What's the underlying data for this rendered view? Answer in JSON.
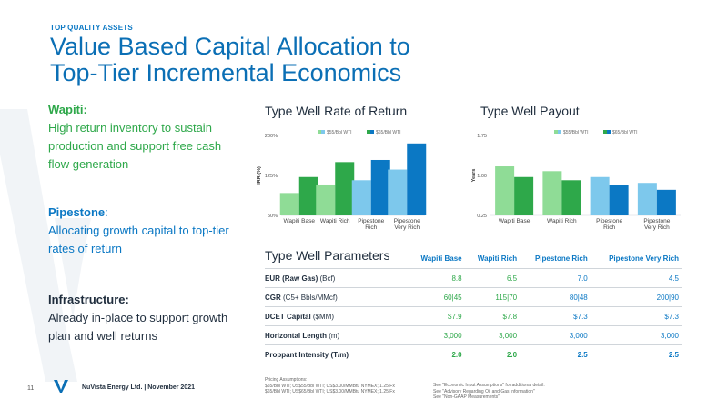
{
  "header": {
    "eyebrow": "TOP QUALITY ASSETS",
    "title_line1": "Value Based Capital Allocation to",
    "title_line2": "Top-Tier Incremental Economics"
  },
  "left": {
    "wapiti_label": "Wapiti:",
    "wapiti_text": "High return inventory to sustain production and support free cash flow generation",
    "pipestone_label": "Pipestone",
    "pipestone_colon": ":",
    "pipestone_text": "Allocating growth capital to top-tier rates of return",
    "infra_label": "Infrastructure:",
    "infra_text": "Already in-place to support growth plan and well returns"
  },
  "colors": {
    "light_green": "#8fdc96",
    "green": "#2ea84a",
    "light_blue": "#7dc8ec",
    "blue": "#0b78c4"
  },
  "chart_data": [
    {
      "type": "bar",
      "title": "Type Well Rate of Return",
      "ylabel": "IRR (%)",
      "ylim": [
        50,
        200
      ],
      "yticks": [
        "200%",
        "125%",
        "50%"
      ],
      "categories": [
        "Wapiti Base",
        "Wapiti Rich",
        "Pipestone Rich",
        "Pipestone Very Rich"
      ],
      "category_lines": [
        [
          "Wapiti Base"
        ],
        [
          "Wapiti Rich"
        ],
        [
          "Pipestone",
          "Rich"
        ],
        [
          "Pipestone",
          "Very Rich"
        ]
      ],
      "legend_placement": "top",
      "series": [
        {
          "name": "$55/Bbl WTI",
          "values": [
            92,
            108,
            116,
            136
          ],
          "colors": [
            "#8fdc96",
            "#8fdc96",
            "#7dc8ec",
            "#7dc8ec"
          ]
        },
        {
          "name": "$65/Bbl WTI",
          "values": [
            122,
            150,
            154,
            185
          ],
          "colors": [
            "#2ea84a",
            "#2ea84a",
            "#0b78c4",
            "#0b78c4"
          ]
        }
      ]
    },
    {
      "type": "bar",
      "title": "Type Well Payout",
      "ylabel": "Years",
      "ylim": [
        0.25,
        1.75
      ],
      "yticks": [
        "1.75",
        "1.00",
        "0.25"
      ],
      "categories": [
        "Wapiti Base",
        "Wapiti Rich",
        "Pipestone Rich",
        "Pipestone Very Rich"
      ],
      "category_lines": [
        [
          "Wapiti Base"
        ],
        [
          "Wapiti Rich"
        ],
        [
          "Pipestone",
          "Rich"
        ],
        [
          "Pipestone",
          "Very Rich"
        ]
      ],
      "legend_placement": "top",
      "series": [
        {
          "name": "$55/Bbl WTI",
          "values": [
            1.17,
            1.08,
            0.97,
            0.86
          ],
          "colors": [
            "#8fdc96",
            "#8fdc96",
            "#7dc8ec",
            "#7dc8ec"
          ]
        },
        {
          "name": "$65/Bbl WTI",
          "values": [
            0.97,
            0.91,
            0.82,
            0.73
          ],
          "colors": [
            "#2ea84a",
            "#2ea84a",
            "#0b78c4",
            "#0b78c4"
          ]
        }
      ]
    }
  ],
  "params": {
    "title": "Type Well Parameters",
    "columns": [
      "Wapiti Base",
      "Wapiti Rich",
      "Pipestone Rich",
      "Pipestone Very Rich"
    ],
    "rows": [
      {
        "label": "EUR (Raw Gas)",
        "unit": " (Bcf)",
        "values": [
          "8.8",
          "6.5",
          "7.0",
          "4.5"
        ],
        "bold": false
      },
      {
        "label": "CGR",
        "unit": " (C5+ Bbls/MMcf)",
        "values": [
          "60|45",
          "115|70",
          "80|48",
          "200|90"
        ],
        "bold": false
      },
      {
        "label": "DCET Capital",
        "unit": " ($MM)",
        "values": [
          "$7.9",
          "$7.8",
          "$7.3",
          "$7.3"
        ],
        "bold": false
      },
      {
        "label": "Horizontal Length",
        "unit": " (m)",
        "values": [
          "3,000",
          "3,000",
          "3,000",
          "3,000"
        ],
        "bold": false
      },
      {
        "label": "Proppant Intensity",
        "unit": " (T/m)",
        "values": [
          "2.0",
          "2.0",
          "2.5",
          "2.5"
        ],
        "bold": true
      }
    ]
  },
  "footer": {
    "page_number": "11",
    "company": "NuVista Energy Ltd. | November 2021",
    "pricing_title": "Pricing Assumptions:",
    "pricing_line1": "$55/Bbl WTI; US$55/Bbl WTI; US$3.00/MMBtu NYMEX; 1.25 Fx",
    "pricing_line2": "$65/Bbl WTI; US$65/Bbl WTI; US$3.00/MMBtu NYMEX; 1.25 Fx",
    "note1": "See \"Economic Input Assumptions\" for additional detail.",
    "note2": "See \"Advisory Regarding Oil and Gas Information\"",
    "note3": "See \"Non-GAAP Measurements\""
  }
}
